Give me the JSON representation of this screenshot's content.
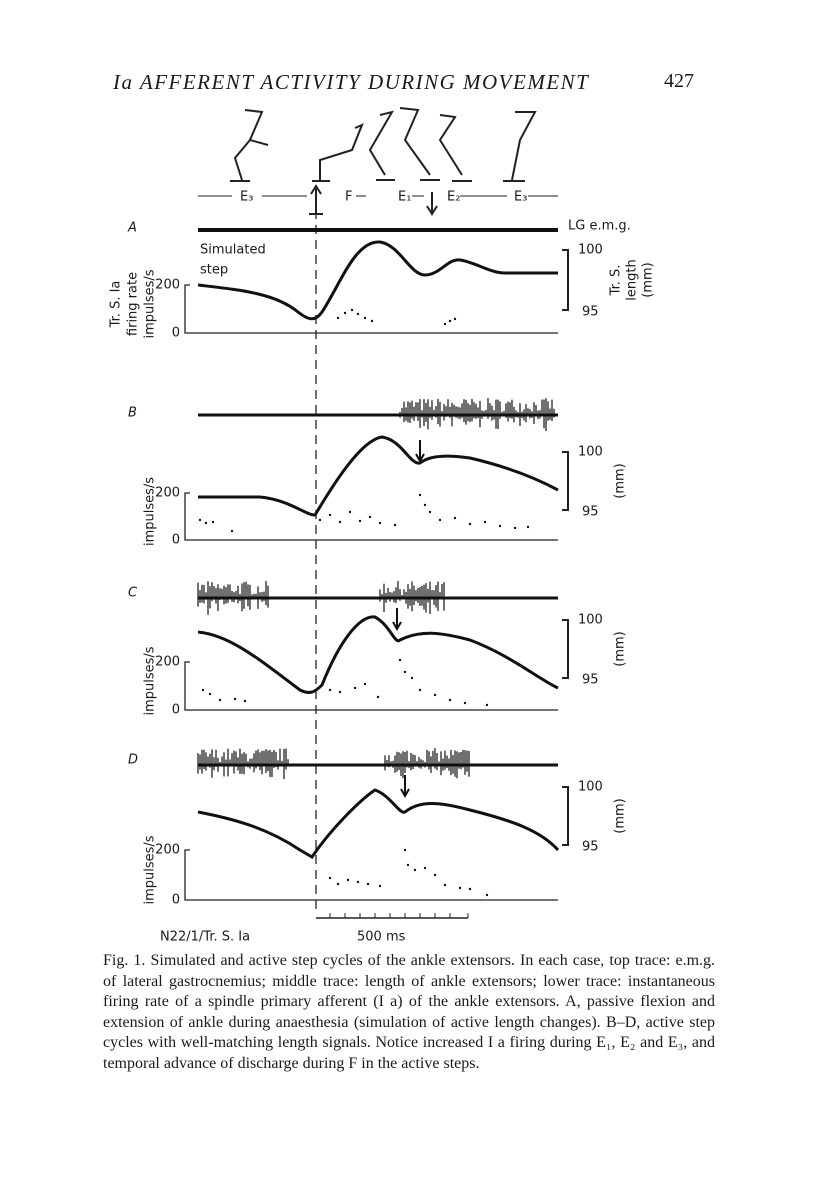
{
  "header": {
    "title": "Ia AFFERENT ACTIVITY DURING MOVEMENT",
    "page": "427"
  },
  "figure": {
    "phases": [
      "E₃",
      "F",
      "E₁",
      "E₂",
      "E₃"
    ],
    "emg_label": "LG e.m.g.",
    "panels": [
      {
        "label": "A",
        "annotation": [
          "Simulated",
          "step"
        ],
        "rate_label": [
          "Tr. S. Ia",
          "firing rate",
          "impulses/s"
        ],
        "rate_ticks": [
          200,
          0
        ],
        "length_ticks": [
          100,
          95
        ],
        "length_label": [
          "Tr. S.",
          "length",
          "(mm)"
        ]
      },
      {
        "label": "B",
        "rate_label": [
          "impulses/s"
        ],
        "rate_ticks": [
          200,
          0
        ],
        "length_ticks": [
          100,
          95
        ],
        "length_label": [
          "(mm)"
        ]
      },
      {
        "label": "C",
        "rate_label": [
          "impulses/s"
        ],
        "rate_ticks": [
          200,
          0
        ],
        "length_ticks": [
          100,
          95
        ],
        "length_label": [
          "(mm)"
        ]
      },
      {
        "label": "D",
        "rate_label": [
          "impulses/s"
        ],
        "rate_ticks": [
          200,
          0
        ],
        "length_ticks": [
          100,
          95
        ],
        "length_label": [
          "(mm)"
        ]
      }
    ],
    "recording_id": "N22/1/Tr. S. Ia",
    "time_scale": "500 ms"
  },
  "caption": {
    "label": "Fig. 1.",
    "text": "Simulated and active step cycles of the ankle extensors. In each case, top trace: e.m.g. of lateral gastrocnemius; middle trace: length of ankle extensors; lower trace: instantaneous firing rate of a spindle primary afferent (I a) of the ankle extensors. A, passive flexion and extension of ankle during anaesthesia (simulation of active length changes). B–D, active step cycles with well-matching length signals. Notice increased I a firing during E₁, E₂ and E₃, and temporal advance of discharge during F in the active steps."
  }
}
